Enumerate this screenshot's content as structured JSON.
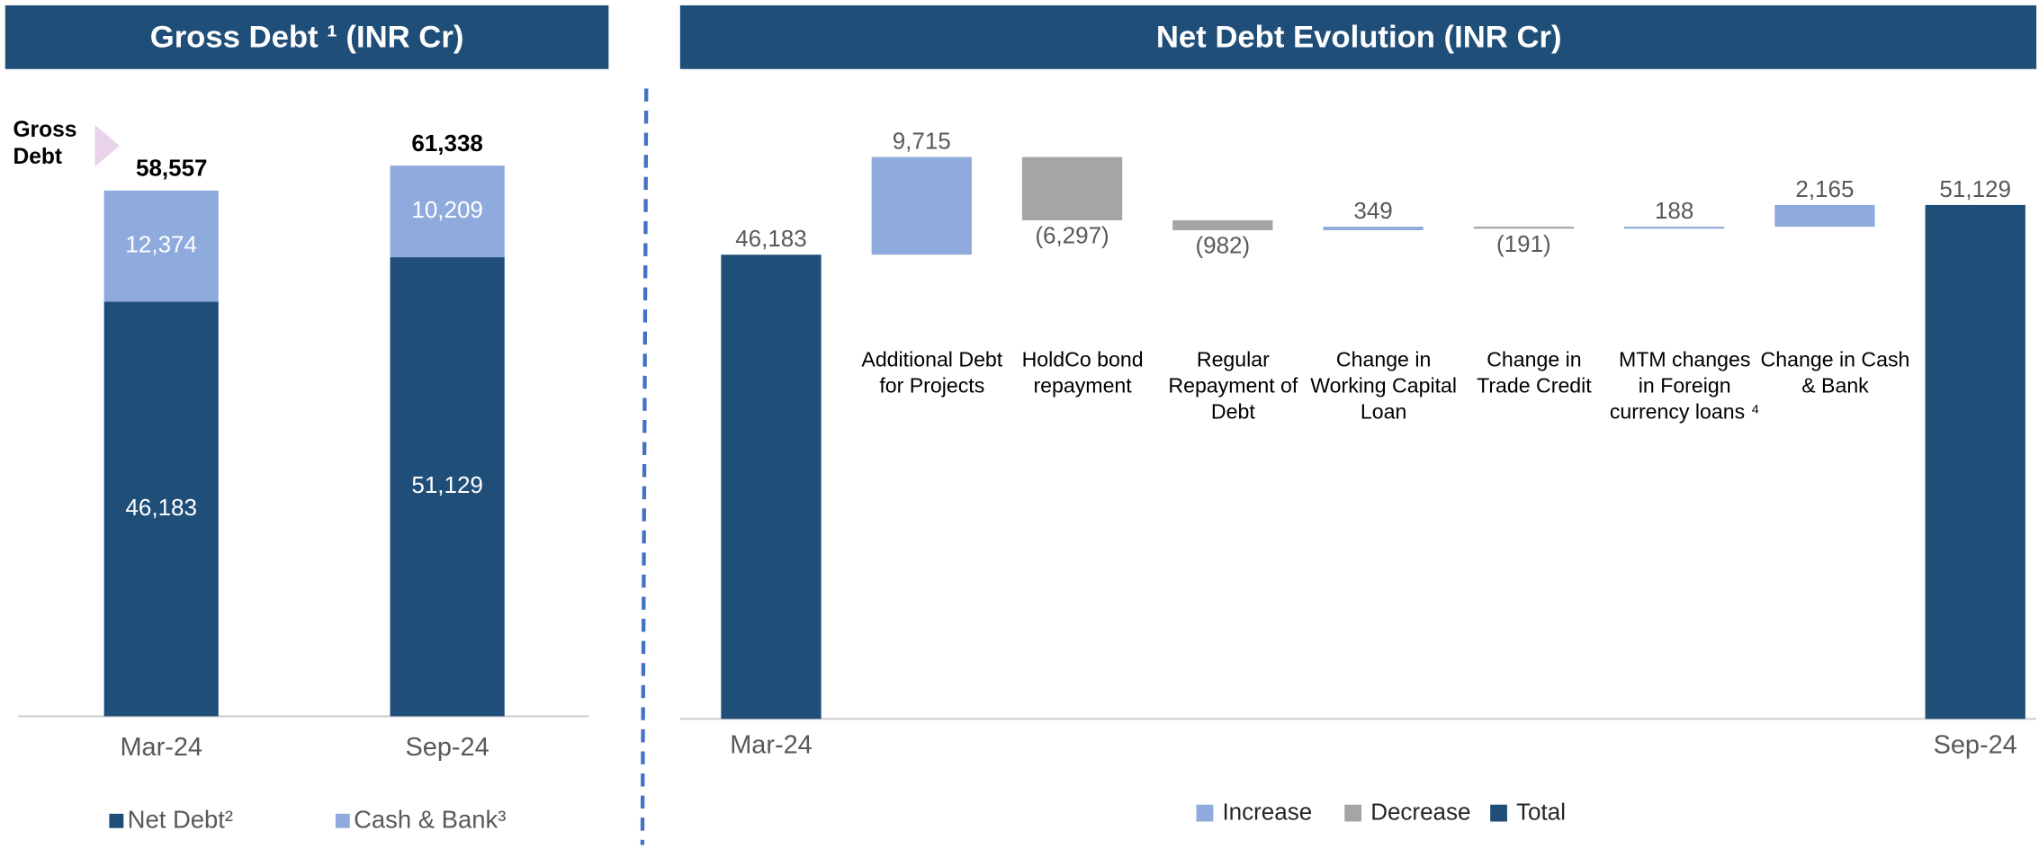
{
  "chart_data": [
    {
      "type": "stacked_bar",
      "title": "Gross Debt ¹ (INR Cr)",
      "annotation": "Gross Debt",
      "categories": [
        "Mar-24",
        "Sep-24"
      ],
      "series": [
        {
          "name": "Net Debt²",
          "color": "#1f4e79",
          "values": [
            46183,
            51129
          ],
          "value_labels": [
            "46,183",
            "51,129"
          ]
        },
        {
          "name": "Cash & Bank³",
          "color": "#8faadc",
          "values": [
            12374,
            10209
          ],
          "value_labels": [
            "12,374",
            "10,209"
          ]
        }
      ],
      "totals": [
        58557,
        61338
      ],
      "total_labels": [
        "58,557",
        "61,338"
      ],
      "ylim": [
        0,
        65000
      ],
      "legend": "bottom"
    },
    {
      "type": "waterfall",
      "title": "Net Debt Evolution (INR Cr)",
      "categories": [
        "Mar-24",
        "Additional Debt for Projects",
        "HoldCo bond repayment",
        "Regular Repayment of Debt",
        "Change in Working Capital Loan",
        "Change in Trade Credit",
        "MTM changes in Foreign currency loans ⁴",
        "Change in Cash & Bank",
        "Sep-24"
      ],
      "values": [
        46183,
        9715,
        -6297,
        -982,
        349,
        -191,
        188,
        2165,
        51129
      ],
      "value_labels": [
        "46,183",
        "9,715",
        "(6,297)",
        "(982)",
        "349",
        "(191)",
        "188",
        "2,165",
        "51,129"
      ],
      "measures": [
        "total",
        "relative",
        "relative",
        "relative",
        "relative",
        "relative",
        "relative",
        "relative",
        "total"
      ],
      "legend_items": [
        {
          "name": "Increase",
          "color": "#8faadc"
        },
        {
          "name": "Decrease",
          "color": "#a5a5a5"
        },
        {
          "name": "Total",
          "color": "#1f4e79"
        }
      ],
      "ylim": [
        0,
        60000
      ],
      "legend": "bottom"
    }
  ]
}
